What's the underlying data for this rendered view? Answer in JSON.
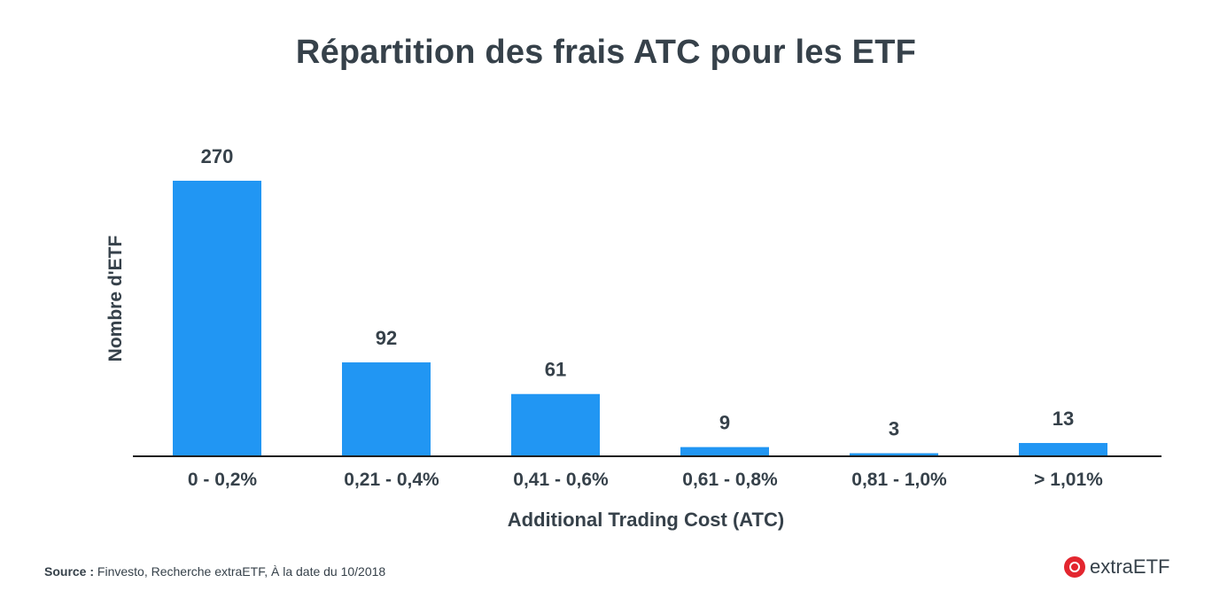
{
  "chart_data": {
    "type": "bar",
    "title": "Répartition des frais ATC pour les ETF",
    "xlabel": "Additional Trading Cost (ATC)",
    "ylabel": "Nombre d'ETF",
    "categories": [
      "0 - 0,2%",
      "0,21 - 0,4%",
      "0,41 - 0,6%",
      "0,61 - 0,8%",
      "0,81 - 1,0%",
      "> 1,01%"
    ],
    "values": [
      270,
      92,
      61,
      9,
      3,
      13
    ],
    "data_labels": [
      "270",
      "92",
      "61",
      "9",
      "3",
      "13"
    ],
    "bar_color": "#2196f3",
    "grid": false,
    "legend": false
  },
  "footer": {
    "source_label": "Source :",
    "source_text": " Finvesto, Recherche extraETF, À la date du 10/2018"
  },
  "brand": {
    "name": "extraETF",
    "icon": "extraetf-logo-icon",
    "color": "#e3262f"
  }
}
